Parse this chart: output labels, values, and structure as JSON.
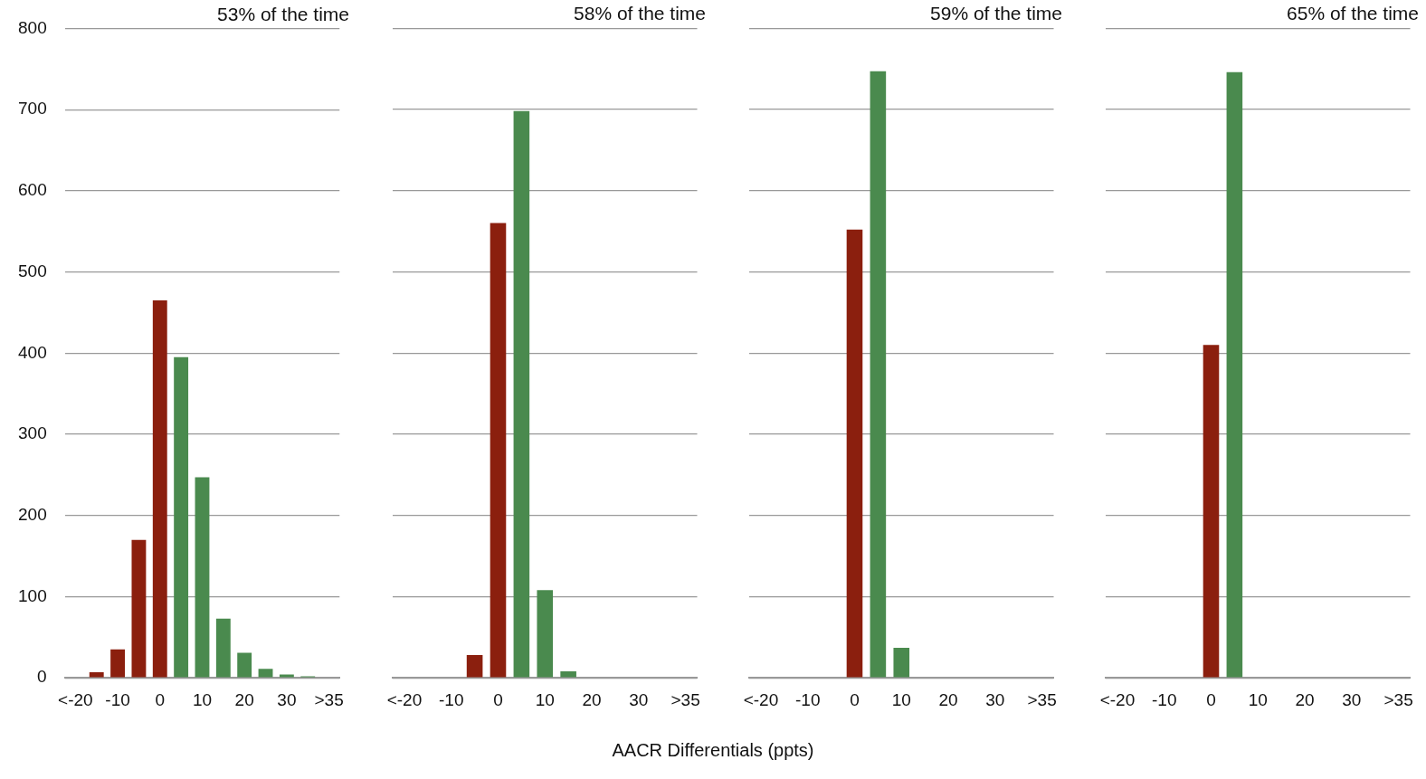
{
  "chart_data": [
    {
      "type": "bar",
      "title": "53% of the time",
      "categories": [
        "<-20",
        null,
        "-10",
        null,
        "0",
        null,
        "10",
        null,
        "20",
        null,
        "30",
        null,
        ">35"
      ],
      "values": [
        0,
        7,
        35,
        170,
        465,
        395,
        247,
        73,
        31,
        11,
        4,
        2,
        0
      ],
      "colors": [
        "#8b1f0e",
        "#8b1f0e",
        "#8b1f0e",
        "#8b1f0e",
        "#8b1f0e",
        "#4a8a4e",
        "#4a8a4e",
        "#4a8a4e",
        "#4a8a4e",
        "#4a8a4e",
        "#4a8a4e",
        "#4a8a4e",
        "#4a8a4e"
      ],
      "ylim": [
        0,
        800
      ],
      "yticks": [
        0,
        100,
        200,
        300,
        400,
        500,
        600,
        700,
        800
      ],
      "grid": "y",
      "legend": false,
      "annotations": [
        "AACR Differentials (ppts)"
      ]
    },
    {
      "type": "bar",
      "title": "58% of the time",
      "categories": [
        "<-20",
        null,
        "-10",
        null,
        "0",
        null,
        "10",
        null,
        "20",
        null,
        "30",
        null,
        ">35"
      ],
      "values": [
        0,
        0,
        0,
        28,
        560,
        698,
        108,
        8,
        0,
        0,
        0,
        0,
        0
      ],
      "colors": [
        "#8b1f0e",
        "#8b1f0e",
        "#8b1f0e",
        "#8b1f0e",
        "#8b1f0e",
        "#4a8a4e",
        "#4a8a4e",
        "#4a8a4e",
        "#4a8a4e",
        "#4a8a4e",
        "#4a8a4e",
        "#4a8a4e",
        "#4a8a4e"
      ],
      "ylim": [
        0,
        800
      ],
      "yticks": [
        0,
        100,
        200,
        300,
        400,
        500,
        600,
        700,
        800
      ],
      "grid": "y",
      "legend": false,
      "tick_labels": "x"
    },
    {
      "type": "bar",
      "title": "59% of the time",
      "categories": [
        "<-20",
        null,
        "-10",
        null,
        "0",
        null,
        "10",
        null,
        "20",
        null,
        "30",
        null,
        ">35"
      ],
      "values": [
        0,
        0,
        0,
        0,
        552,
        747,
        37,
        0,
        0,
        0,
        0,
        0,
        0
      ],
      "colors": [
        "#8b1f0e",
        "#8b1f0e",
        "#8b1f0e",
        "#8b1f0e",
        "#8b1f0e",
        "#4a8a4e",
        "#4a8a4e",
        "#4a8a4e",
        "#4a8a4e",
        "#4a8a4e",
        "#4a8a4e",
        "#4a8a4e",
        "#4a8a4e"
      ],
      "ylim": [
        0,
        800
      ],
      "yticks": [
        0,
        100,
        200,
        300,
        400,
        500,
        600,
        700,
        800
      ],
      "grid": "y",
      "legend": false,
      "tick_labels": "x"
    },
    {
      "type": "bar",
      "title": "65% of the time",
      "categories": [
        "<-20",
        null,
        "-10",
        null,
        "0",
        null,
        "10",
        null,
        "20",
        null,
        "30",
        null,
        ">35"
      ],
      "values": [
        0,
        0,
        0,
        0,
        410,
        746,
        0,
        0,
        0,
        0,
        0,
        0,
        0
      ],
      "colors": [
        "#8b1f0e",
        "#8b1f0e",
        "#8b1f0e",
        "#8b1f0e",
        "#8b1f0e",
        "#4a8a4e",
        "#4a8a4e",
        "#4a8a4e",
        "#4a8a4e",
        "#4a8a4e",
        "#4a8a4e",
        "#4a8a4e",
        "#4a8a4e"
      ],
      "ylim": [
        0,
        800
      ],
      "yticks": [
        0,
        100,
        200,
        300,
        400,
        500,
        600,
        700,
        800
      ],
      "grid": "y",
      "legend": false,
      "tick_labels": "x"
    }
  ]
}
